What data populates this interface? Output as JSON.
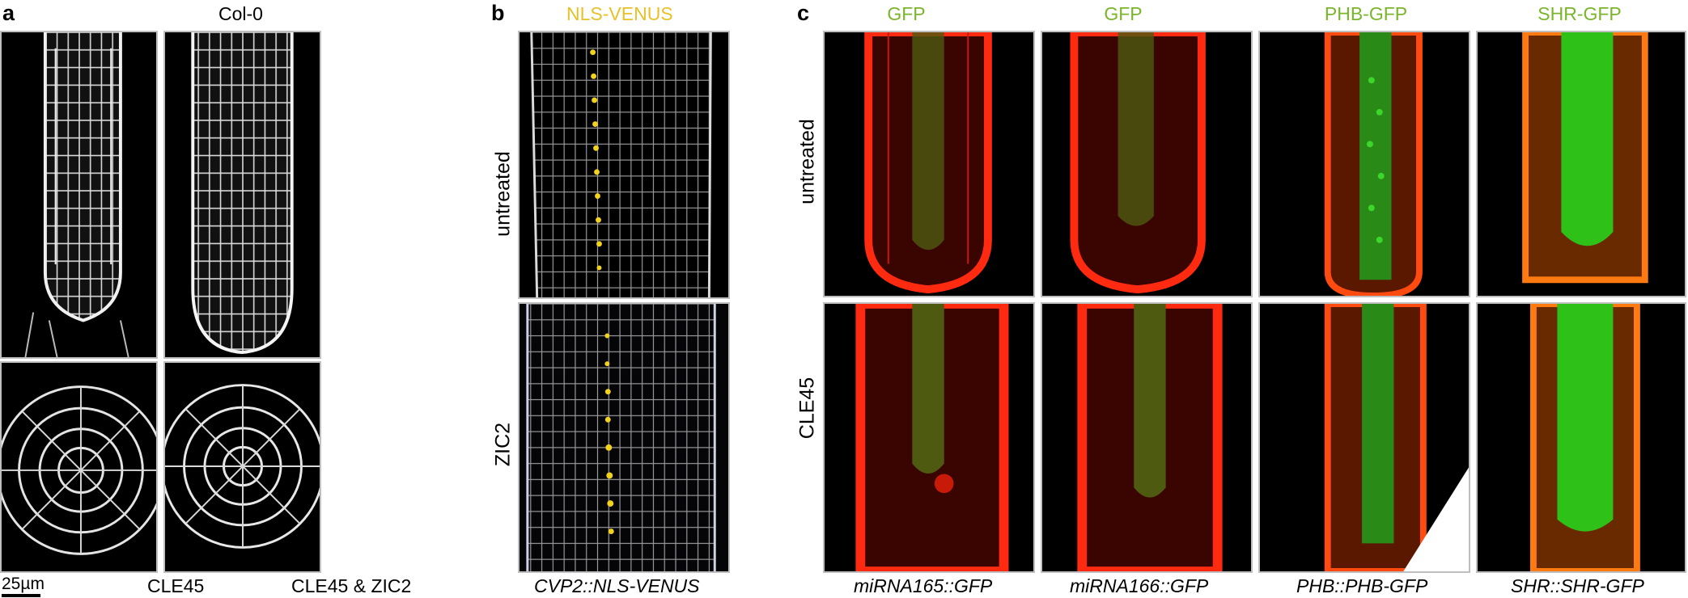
{
  "panels": {
    "a": {
      "letter": "a",
      "header": "Col-0",
      "captions": [
        "CLE45",
        "CLE45 & ZIC2"
      ],
      "scale_bar": "25µm"
    },
    "b": {
      "letter": "b",
      "header": "NLS-VENUS",
      "header_color": "#e8c12a",
      "row_labels": [
        "untreated",
        "ZIC2"
      ],
      "caption": "CVP2::NLS-VENUS"
    },
    "c": {
      "letter": "c",
      "headers": [
        "GFP",
        "GFP",
        "PHB-GFP",
        "SHR-GFP"
      ],
      "header_color": "#7ab52c",
      "row_labels": [
        "untreated",
        "CLE45"
      ],
      "captions": [
        "miRNA165::GFP",
        "miRNA166::GFP",
        "PHB::PHB-GFP",
        "SHR::SHR-GFP"
      ]
    }
  },
  "colors": {
    "cell_wall_gray": "#e6e6e6",
    "venus_yellow": "#f2d21c",
    "membrane_red": "#ff2a10",
    "gfp_green": "#3dd62a",
    "tile_border": "#bfbfbf"
  }
}
